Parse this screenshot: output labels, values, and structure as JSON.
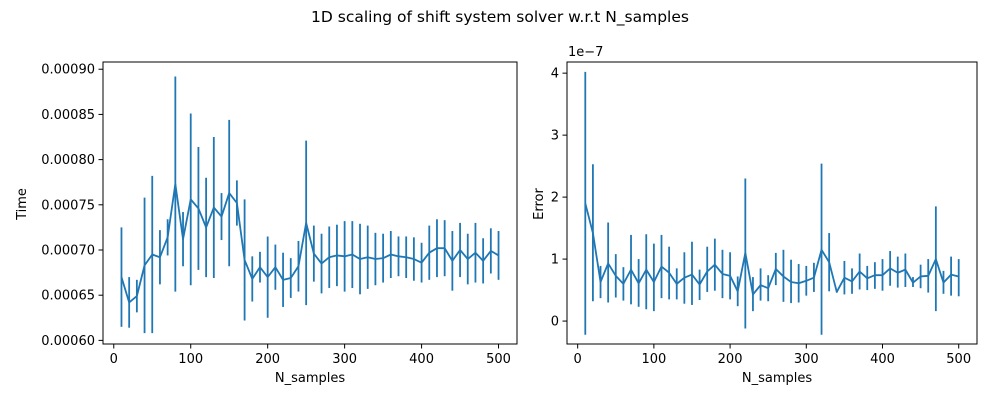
{
  "figure": {
    "title": "1D scaling of shift system solver w.r.t N_samples"
  },
  "chart_data": [
    {
      "type": "line",
      "error_bars": true,
      "title": "",
      "xlabel": "N_samples",
      "ylabel": "Time",
      "xlim": [
        -14,
        524
      ],
      "ylim": [
        0.000596,
        0.000908
      ],
      "xticks": [
        0,
        100,
        200,
        300,
        400,
        500
      ],
      "xtick_labels": [
        "0",
        "100",
        "200",
        "300",
        "400",
        "500"
      ],
      "yticks": [
        0.0006,
        0.00065,
        0.0007,
        0.00075,
        0.0008,
        0.00085,
        0.0009
      ],
      "ytick_labels": [
        "0.00060",
        "0.00065",
        "0.00070",
        "0.00075",
        "0.00080",
        "0.00085",
        "0.00090"
      ],
      "offset_text": "",
      "color": "#1f77b4",
      "grid": false,
      "series": [
        {
          "x": [
            10,
            20,
            30,
            40,
            50,
            60,
            70,
            80,
            90,
            100,
            110,
            120,
            130,
            140,
            150,
            160,
            170,
            180,
            190,
            200,
            210,
            220,
            230,
            240,
            250,
            260,
            270,
            280,
            290,
            300,
            310,
            320,
            330,
            340,
            350,
            360,
            370,
            380,
            390,
            400,
            410,
            420,
            430,
            440,
            450,
            460,
            470,
            480,
            490,
            500
          ],
          "y": [
            0.00067,
            0.000642,
            0.000649,
            0.000683,
            0.000695,
            0.000692,
            0.000714,
            0.000773,
            0.000712,
            0.000756,
            0.000746,
            0.000725,
            0.000747,
            0.000737,
            0.000763,
            0.000752,
            0.000689,
            0.000668,
            0.000681,
            0.00067,
            0.000681,
            0.000667,
            0.000669,
            0.000682,
            0.00073,
            0.000696,
            0.000685,
            0.000692,
            0.000694,
            0.000693,
            0.000695,
            0.00069,
            0.000692,
            0.00069,
            0.000691,
            0.000695,
            0.000693,
            0.000692,
            0.00069,
            0.000686,
            0.000697,
            0.000702,
            0.000702,
            0.000688,
            0.0007,
            0.00069,
            0.000697,
            0.000688,
            0.000699,
            0.000694
          ],
          "yerr": [
            5.5e-05,
            2.8e-05,
            1.8e-05,
            7.5e-05,
            8.7e-05,
            3e-05,
            2e-05,
            0.000119,
            3e-05,
            9.5e-05,
            6.8e-05,
            5.5e-05,
            7.8e-05,
            2.6e-05,
            8.1e-05,
            2.5e-05,
            6.7e-05,
            2.5e-05,
            1.7e-05,
            4.5e-05,
            2.5e-05,
            3e-05,
            2.2e-05,
            2.8e-05,
            9.1e-05,
            3.1e-05,
            3.3e-05,
            3.4e-05,
            3.4e-05,
            3.9e-05,
            3.7e-05,
            3.9e-05,
            3.5e-05,
            2.9e-05,
            2.7e-05,
            2.6e-05,
            2.2e-05,
            2.3e-05,
            2.4e-05,
            2.2e-05,
            3e-05,
            3.2e-05,
            3.1e-05,
            3.3e-05,
            3e-05,
            2.8e-05,
            3.3e-05,
            2.5e-05,
            2.5e-05,
            2.7e-05
          ]
        }
      ]
    },
    {
      "type": "line",
      "error_bars": true,
      "title": "",
      "xlabel": "N_samples",
      "ylabel": "Error",
      "xlim": [
        -14,
        524
      ],
      "ylim": [
        -0.37,
        4.18
      ],
      "xticks": [
        0,
        100,
        200,
        300,
        400,
        500
      ],
      "xtick_labels": [
        "0",
        "100",
        "200",
        "300",
        "400",
        "500"
      ],
      "yticks": [
        0,
        1,
        2,
        3,
        4
      ],
      "ytick_labels": [
        "0",
        "1",
        "2",
        "3",
        "4"
      ],
      "offset_text": "1e−7",
      "color": "#1f77b4",
      "grid": false,
      "series": [
        {
          "x": [
            10,
            20,
            30,
            40,
            50,
            60,
            70,
            80,
            90,
            100,
            110,
            120,
            130,
            140,
            150,
            160,
            170,
            180,
            190,
            200,
            210,
            220,
            230,
            240,
            250,
            260,
            270,
            280,
            290,
            300,
            310,
            320,
            330,
            340,
            350,
            360,
            370,
            380,
            390,
            400,
            410,
            420,
            430,
            440,
            450,
            460,
            470,
            480,
            490,
            500
          ],
          "y": [
            1.9,
            1.42,
            0.63,
            0.93,
            0.73,
            0.6,
            0.83,
            0.61,
            0.83,
            0.63,
            0.88,
            0.78,
            0.6,
            0.7,
            0.75,
            0.59,
            0.8,
            0.91,
            0.76,
            0.73,
            0.48,
            1.1,
            0.43,
            0.58,
            0.53,
            0.84,
            0.72,
            0.63,
            0.61,
            0.65,
            0.7,
            1.15,
            0.95,
            0.47,
            0.7,
            0.64,
            0.8,
            0.69,
            0.74,
            0.74,
            0.85,
            0.78,
            0.83,
            0.62,
            0.72,
            0.73,
            1.0,
            0.62,
            0.75,
            0.72
          ]
        }
      ],
      "err_low": [
        -0.22,
        0.32,
        0.37,
        0.3,
        0.38,
        0.33,
        0.27,
        0.23,
        0.19,
        0.16,
        0.37,
        0.35,
        0.35,
        0.28,
        0.26,
        0.34,
        0.47,
        0.49,
        0.37,
        0.35,
        0.24,
        -0.12,
        0.16,
        0.33,
        0.32,
        0.58,
        0.31,
        0.29,
        0.3,
        0.41,
        0.47,
        -0.22,
        0.48,
        0.5,
        0.43,
        0.44,
        0.51,
        0.5,
        0.52,
        0.49,
        0.57,
        0.54,
        0.55,
        0.55,
        0.53,
        0.46,
        0.16,
        0.44,
        0.41,
        0.4
      ],
      "err_high": [
        4.02,
        2.53,
        0.89,
        1.59,
        1.08,
        0.87,
        1.39,
        1.0,
        1.4,
        1.25,
        1.39,
        1.2,
        0.85,
        1.11,
        1.28,
        0.83,
        1.2,
        1.33,
        1.15,
        1.11,
        0.72,
        2.3,
        0.71,
        0.85,
        0.74,
        1.1,
        1.15,
        0.99,
        0.92,
        0.89,
        0.94,
        2.54,
        1.42,
        0.46,
        0.97,
        0.85,
        1.09,
        0.89,
        0.95,
        1.0,
        1.13,
        1.04,
        1.09,
        0.71,
        0.91,
        1.0,
        1.85,
        0.81,
        1.04,
        1.0
      ]
    }
  ]
}
